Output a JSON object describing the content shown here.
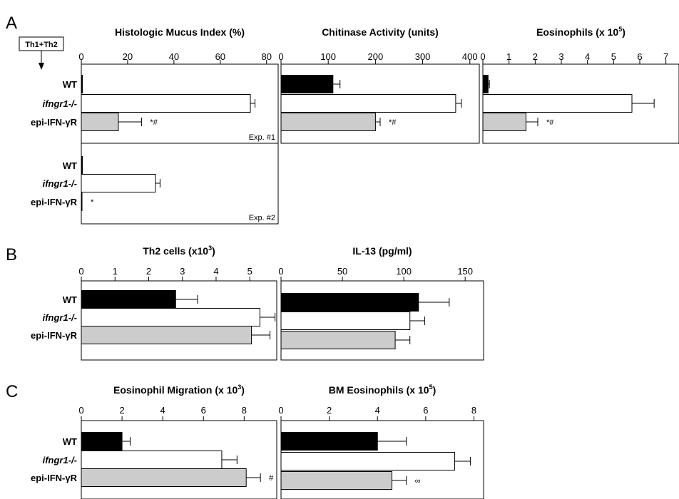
{
  "panels": [
    "A",
    "B",
    "C"
  ],
  "treatment_label": "Th1+Th2",
  "colors": {
    "WT": "#000000",
    "ifngr1-/-": "#ffffff",
    "epi-IFN-γR": "#cccccc"
  },
  "chart_data": [
    {
      "type": "bar",
      "orientation": "horizontal",
      "panel": "A",
      "title": "Histologic Mucus Index (%)",
      "title_sup": "",
      "xlim": [
        0,
        85
      ],
      "ticks": [
        0,
        20,
        40,
        60,
        80
      ],
      "groups": [
        {
          "annotation": "Exp. #1",
          "categories": [
            "WT",
            "ifngr1-/-",
            "epi-IFN-γR"
          ],
          "values": [
            0.5,
            73,
            16
          ],
          "errors": [
            0,
            2,
            10
          ],
          "marks": [
            "",
            "",
            "*#"
          ]
        },
        {
          "annotation": "Exp. #2",
          "categories": [
            "WT",
            "ifngr1-/-",
            "epi-IFN-γR"
          ],
          "values": [
            0.5,
            32,
            0.3
          ],
          "errors": [
            0,
            2,
            0
          ],
          "marks": [
            "",
            "",
            "*"
          ]
        }
      ]
    },
    {
      "type": "bar",
      "orientation": "horizontal",
      "panel": "A",
      "title": "Chitinase Activity (units)",
      "title_sup": "",
      "xlim": [
        0,
        420
      ],
      "ticks": [
        0,
        100,
        200,
        300,
        400
      ],
      "groups": [
        {
          "annotation": "",
          "categories": [
            "WT",
            "ifngr1-/-",
            "epi-IFN-γR"
          ],
          "values": [
            110,
            370,
            200
          ],
          "errors": [
            15,
            12,
            10
          ],
          "marks": [
            "",
            "",
            "*#"
          ]
        }
      ]
    },
    {
      "type": "bar",
      "orientation": "horizontal",
      "panel": "A",
      "title": "Eosinophils (x 10",
      "title_sup": "5",
      "title_end": ")",
      "xlim": [
        0,
        7.5
      ],
      "ticks": [
        0,
        1,
        2,
        3,
        4,
        5,
        6,
        7
      ],
      "groups": [
        {
          "annotation": "",
          "categories": [
            "WT",
            "ifngr1-/-",
            "epi-IFN-γR"
          ],
          "values": [
            0.2,
            5.7,
            1.65
          ],
          "errors": [
            0.05,
            0.85,
            0.45
          ],
          "marks": [
            "",
            "",
            "*#"
          ]
        }
      ]
    },
    {
      "type": "bar",
      "orientation": "horizontal",
      "panel": "B",
      "title": "Th2 cells (x10",
      "title_sup": "3",
      "title_end": ")",
      "xlim": [
        0,
        5.8
      ],
      "ticks": [
        0,
        1,
        2,
        3,
        4,
        5
      ],
      "groups": [
        {
          "annotation": "",
          "categories": [
            "WT",
            "ifngr1-/-",
            "epi-IFN-γR"
          ],
          "values": [
            2.8,
            5.3,
            5.05
          ],
          "errors": [
            0.65,
            0.45,
            0.55
          ],
          "marks": [
            "",
            "",
            ""
          ]
        }
      ]
    },
    {
      "type": "bar",
      "orientation": "horizontal",
      "panel": "B",
      "title": "IL-13 (pg/ml)",
      "title_sup": "",
      "xlim": [
        0,
        165
      ],
      "ticks": [
        0,
        50,
        100,
        150
      ],
      "groups": [
        {
          "annotation": "",
          "categories": [
            "WT",
            "ifngr1-/-",
            "epi-IFN-γR"
          ],
          "values": [
            112,
            105,
            93
          ],
          "errors": [
            25,
            12,
            12
          ],
          "marks": [
            "",
            "",
            ""
          ]
        }
      ]
    },
    {
      "type": "bar",
      "orientation": "horizontal",
      "panel": "C",
      "title": "Eosinophil Migration (x 10",
      "title_sup": "3",
      "title_end": ")",
      "xlim": [
        0,
        9.6
      ],
      "ticks": [
        0,
        2,
        4,
        6,
        8
      ],
      "groups": [
        {
          "annotation": "",
          "categories": [
            "WT",
            "ifngr1-/-",
            "epi-IFN-γR"
          ],
          "values": [
            2,
            6.9,
            8.1
          ],
          "errors": [
            0.4,
            0.75,
            0.7
          ],
          "marks": [
            "",
            "",
            "#"
          ]
        }
      ]
    },
    {
      "type": "bar",
      "orientation": "horizontal",
      "panel": "C",
      "title": "BM Eosinophils (x 10",
      "title_sup": "5",
      "title_end": ")",
      "xlim": [
        0,
        8.4
      ],
      "ticks": [
        0,
        2,
        4,
        6,
        8
      ],
      "groups": [
        {
          "annotation": "",
          "categories": [
            "WT",
            "ifngr1-/-",
            "epi-IFN-γR"
          ],
          "values": [
            4,
            7.2,
            4.6
          ],
          "errors": [
            1.2,
            0.65,
            0.6
          ],
          "marks": [
            "",
            "",
            "∞"
          ]
        }
      ]
    }
  ]
}
